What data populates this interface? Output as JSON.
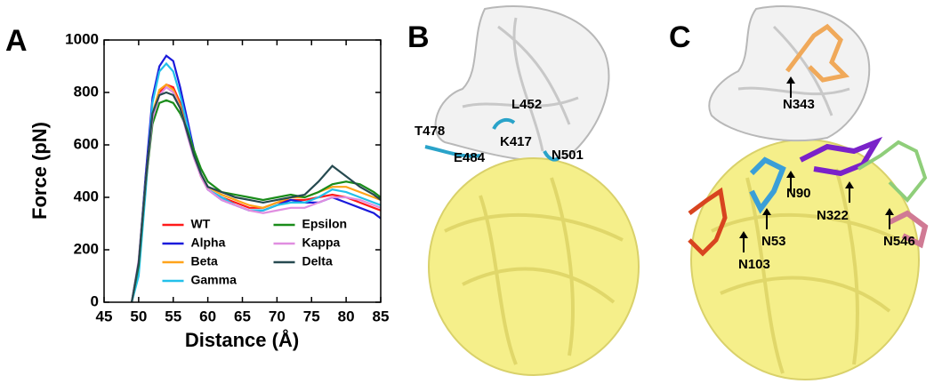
{
  "chart_data": {
    "type": "line",
    "panel_label": "A",
    "x_label": "Distance (Å)",
    "y_label": "Force (pN)",
    "x": [
      49,
      50,
      51,
      52,
      53,
      54,
      55,
      56,
      57,
      58,
      59,
      60,
      62,
      64,
      66,
      68,
      70,
      72,
      74,
      76,
      78,
      80,
      82,
      84,
      85
    ],
    "series": [
      {
        "name": "WT",
        "color": "#ff1a1a",
        "values": [
          0,
          150,
          450,
          700,
          800,
          830,
          820,
          760,
          660,
          560,
          480,
          430,
          400,
          380,
          360,
          360,
          380,
          390,
          390,
          400,
          410,
          400,
          380,
          360,
          350
        ]
      },
      {
        "name": "Alpha",
        "color": "#1a1adb",
        "values": [
          0,
          150,
          480,
          780,
          900,
          940,
          920,
          820,
          700,
          580,
          490,
          430,
          390,
          370,
          350,
          350,
          370,
          390,
          380,
          380,
          400,
          380,
          360,
          340,
          320
        ]
      },
      {
        "name": "Beta",
        "color": "#ffa31a",
        "values": [
          0,
          150,
          460,
          720,
          810,
          830,
          810,
          750,
          650,
          560,
          490,
          440,
          410,
          390,
          370,
          360,
          380,
          400,
          400,
          420,
          440,
          440,
          420,
          400,
          390
        ]
      },
      {
        "name": "Gamma",
        "color": "#22c0ea",
        "values": [
          0,
          100,
          420,
          760,
          880,
          910,
          880,
          790,
          680,
          570,
          490,
          430,
          400,
          370,
          350,
          350,
          370,
          380,
          380,
          400,
          430,
          420,
          400,
          380,
          370
        ]
      },
      {
        "name": "Epsilon",
        "color": "#1a8c1a",
        "values": [
          0,
          140,
          450,
          680,
          760,
          770,
          760,
          720,
          660,
          580,
          510,
          460,
          420,
          410,
          400,
          390,
          400,
          410,
          400,
          420,
          450,
          460,
          450,
          420,
          400
        ]
      },
      {
        "name": "Kappa",
        "color": "#e08ee0",
        "values": [
          0,
          160,
          460,
          700,
          790,
          820,
          800,
          740,
          640,
          550,
          480,
          430,
          390,
          370,
          350,
          340,
          350,
          360,
          360,
          380,
          400,
          400,
          390,
          370,
          360
        ]
      },
      {
        "name": "Delta",
        "color": "#264a50",
        "values": [
          0,
          150,
          460,
          720,
          790,
          800,
          790,
          740,
          650,
          560,
          490,
          440,
          420,
          400,
          390,
          380,
          390,
          400,
          410,
          460,
          520,
          480,
          440,
          410,
          390
        ]
      }
    ],
    "xlim": [
      45,
      85
    ],
    "xticks": [
      45,
      50,
      55,
      60,
      65,
      70,
      75,
      80,
      85
    ],
    "ylim": [
      0,
      1000
    ],
    "yticks": [
      0,
      200,
      400,
      600,
      800,
      1000
    ],
    "legend": "lower center"
  },
  "structures": [
    {
      "panel": "B",
      "residues": [
        "L452",
        "T478",
        "K417",
        "E484",
        "N501"
      ]
    },
    {
      "panel": "C",
      "glycans": [
        "N343",
        "N90",
        "N322",
        "N53",
        "N546",
        "N103"
      ]
    }
  ]
}
